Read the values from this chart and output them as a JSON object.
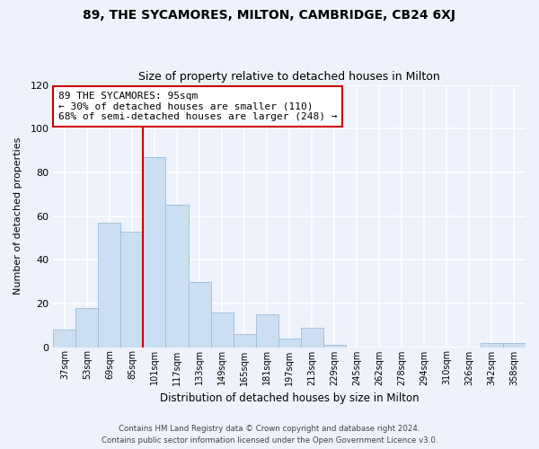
{
  "title": "89, THE SYCAMORES, MILTON, CAMBRIDGE, CB24 6XJ",
  "subtitle": "Size of property relative to detached houses in Milton",
  "xlabel": "Distribution of detached houses by size in Milton",
  "ylabel": "Number of detached properties",
  "bar_labels": [
    "37sqm",
    "53sqm",
    "69sqm",
    "85sqm",
    "101sqm",
    "117sqm",
    "133sqm",
    "149sqm",
    "165sqm",
    "181sqm",
    "197sqm",
    "213sqm",
    "229sqm",
    "245sqm",
    "262sqm",
    "278sqm",
    "294sqm",
    "310sqm",
    "326sqm",
    "342sqm",
    "358sqm"
  ],
  "bar_values": [
    8,
    18,
    57,
    53,
    87,
    65,
    30,
    16,
    6,
    15,
    4,
    9,
    1,
    0,
    0,
    0,
    0,
    0,
    0,
    2,
    2
  ],
  "bar_color": "#ccdff2",
  "bar_edge_color": "#9bbdd8",
  "vline_index": 4,
  "vline_color": "#cc0000",
  "annotation_line1": "89 THE SYCAMORES: 95sqm",
  "annotation_line2": "← 30% of detached houses are smaller (110)",
  "annotation_line3": "68% of semi-detached houses are larger (248) →",
  "annotation_box_edge": "#cc0000",
  "ylim": [
    0,
    120
  ],
  "yticks": [
    0,
    20,
    40,
    60,
    80,
    100,
    120
  ],
  "footer_line1": "Contains HM Land Registry data © Crown copyright and database right 2024.",
  "footer_line2": "Contains public sector information licensed under the Open Government Licence v3.0.",
  "bg_color": "#eef2fa",
  "plot_bg_color": "#eef2fa",
  "grid_color": "#ffffff",
  "title_fontsize": 10,
  "subtitle_fontsize": 9
}
